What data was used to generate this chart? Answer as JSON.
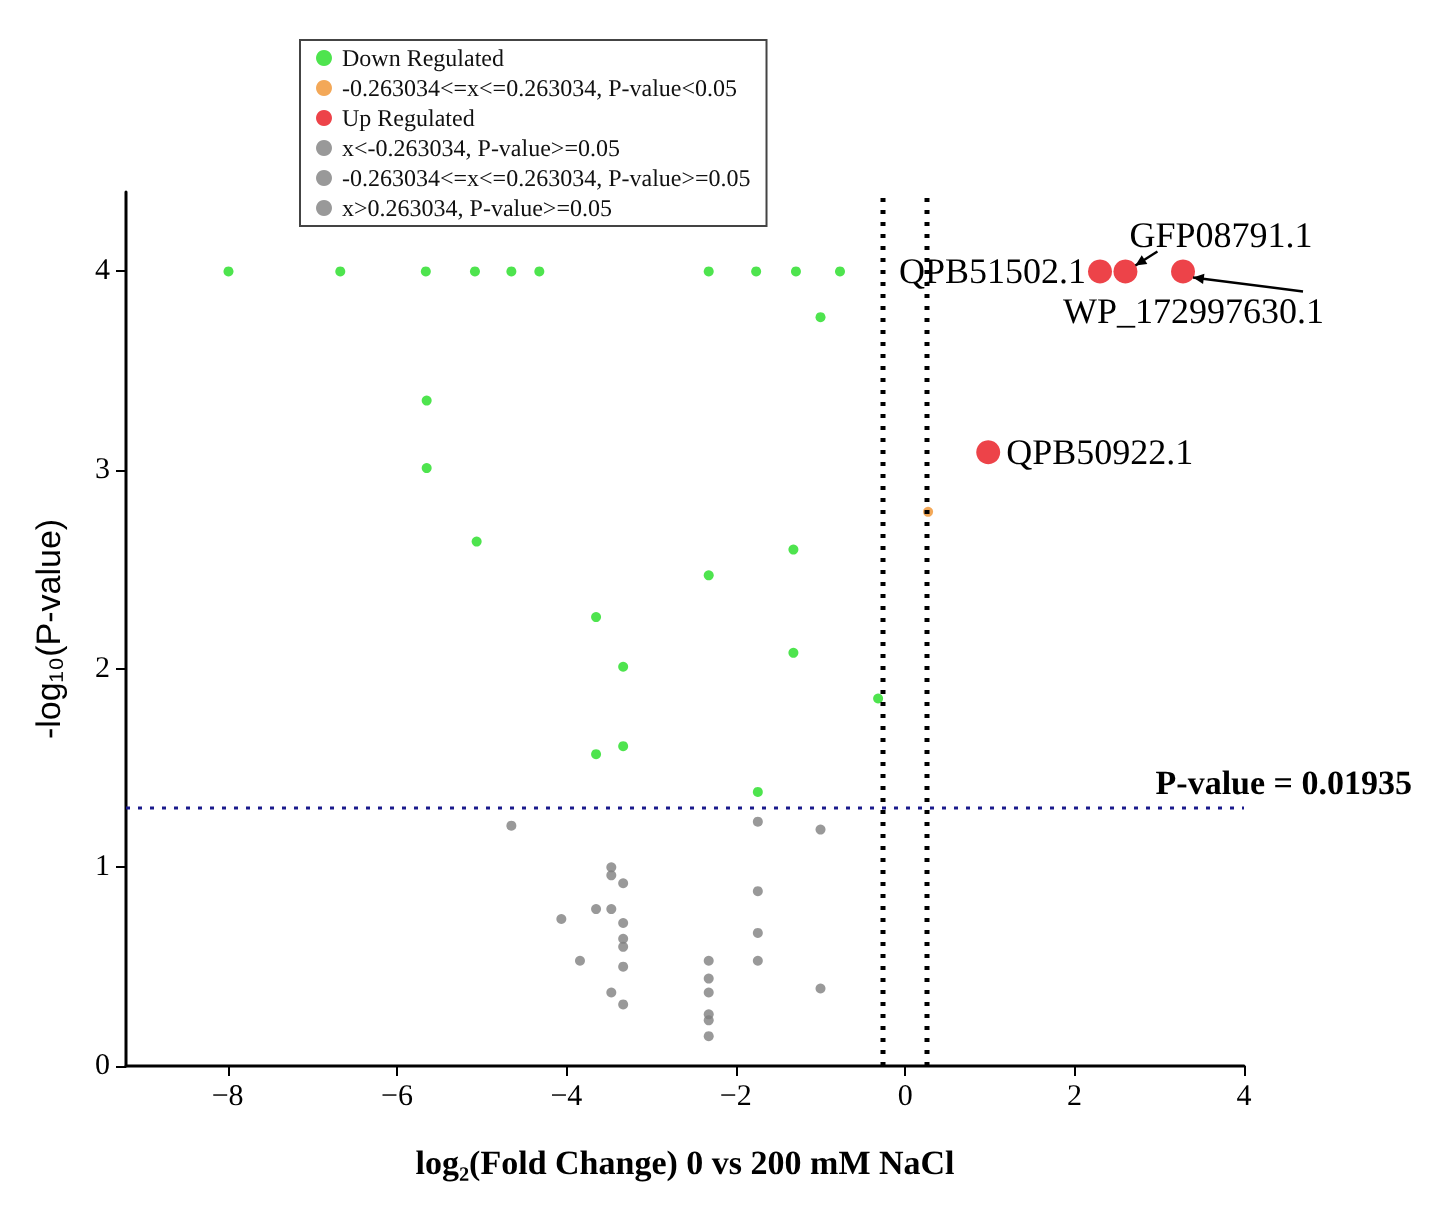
{
  "chart_data": {
    "type": "scatter",
    "xlabel": "log₂(Fold Change) 0 vs 200 mM NaCl",
    "ylabel": "-log₁₀(P-value)",
    "xlim": [
      -9.2,
      4
    ],
    "xticks": [
      -8,
      -6,
      -4,
      -2,
      0,
      2,
      4
    ],
    "ylim": [
      0,
      4.4
    ],
    "yticks": [
      0,
      1,
      2,
      3,
      4
    ],
    "grid": false,
    "legend": "top left",
    "marker": "circle",
    "series": [
      {
        "name": "Down Regulated",
        "color": "#22dd22",
        "x": [
          -7.99,
          -6.67,
          -5.66,
          -5.08,
          -4.65,
          -4.32,
          -2.32,
          -1.76,
          -1.29,
          -0.77,
          -1.0,
          -5.65,
          -5.65,
          -5.06,
          -1.32,
          -2.32,
          -3.65,
          -1.32,
          -3.33,
          -0.32,
          -3.65,
          -3.33,
          -1.74
        ],
        "values": [
          4,
          4,
          4,
          4,
          4,
          4,
          4,
          4,
          4,
          4,
          3.77,
          3.35,
          3.01,
          2.64,
          2.6,
          2.47,
          2.26,
          2.08,
          2.01,
          1.85,
          1.57,
          1.61,
          1.38
        ]
      },
      {
        "name": "-0.263034<=x<=0.263034, P-value<0.05",
        "color": "#f0922e",
        "x": [
          0.27
        ],
        "values": [
          2.79
        ]
      },
      {
        "name": "Up Regulated",
        "color": "#e8141c",
        "x": [
          2.3,
          2.6,
          3.28,
          0.98
        ],
        "values": [
          4,
          4,
          4,
          3.09
        ]
      },
      {
        "name": "x<-0.263034, P-value>=0.05",
        "color": "#808080",
        "x": [
          -4.65,
          -1.74,
          -1.0,
          -3.47,
          -3.47,
          -3.33,
          -1.74,
          -4.06,
          -3.65,
          -3.47,
          -3.33,
          -3.33,
          -3.33,
          -3.33,
          -3.84,
          -1.74,
          -1.74,
          -2.32,
          -2.32,
          -2.32,
          -2.32,
          -2.32,
          -2.32,
          -3.47,
          -3.33,
          -1.0
        ],
        "values": [
          1.21,
          1.23,
          1.19,
          1.0,
          0.96,
          0.92,
          0.88,
          0.74,
          0.79,
          0.79,
          0.72,
          0.64,
          0.6,
          0.5,
          0.53,
          0.67,
          0.53,
          0.53,
          0.44,
          0.37,
          0.26,
          0.23,
          0.15,
          0.37,
          0.31,
          0.39
        ]
      },
      {
        "name": "-0.263034<=x<=0.263034, P-value>=0.05",
        "color": "#808080"
      },
      {
        "name": "x>0.263034, P-value>=0.05",
        "color": "#808080"
      }
    ],
    "ref_lines": [
      {
        "axis": "x",
        "value": -0.263034,
        "label": null,
        "color": "#000000",
        "line_style": "dotted"
      },
      {
        "axis": "x",
        "value": 0.263034,
        "label": null,
        "color": "#000000",
        "line_style": "dotted"
      },
      {
        "axis": "y",
        "value": 1.3,
        "label": null,
        "color": "#1a1a8c",
        "line_style": "dotted"
      }
    ],
    "annotations": [
      {
        "text": "QPB51502.1",
        "x": 2.3,
        "y": 4
      },
      {
        "text": "GFP08791.1",
        "x": 2.6,
        "y": 4
      },
      {
        "text": "WP_172997630.1",
        "x": 3.28,
        "y": 4
      },
      {
        "text": "QPB50922.1",
        "x": 0.98,
        "y": 3.09
      },
      "P-value = 0.01935"
    ]
  }
}
